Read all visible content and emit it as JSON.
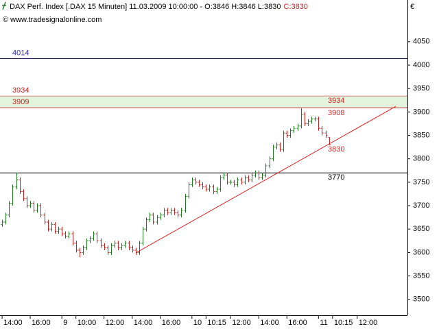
{
  "chart_data": {
    "type": "ohlc",
    "title": "DAX Perf. Index [.DAX  15 Minuten] 11.03.2009 10:00:00 - O:3846 H:3846 L:3830",
    "close_label": "C:3830",
    "source": "© www.tradesignalonline.com",
    "currency": "€",
    "up_color": "#1f7a1f",
    "down_color": "#cc1f1f",
    "ylim": [
      3466,
      4139
    ],
    "yticks": [
      3500,
      3550,
      3600,
      3650,
      3700,
      3750,
      3800,
      3850,
      3900,
      3950,
      4000,
      4050
    ],
    "xlim": [
      -0.6,
      115.3
    ],
    "xticks": [
      {
        "value": 0,
        "label": "14:00"
      },
      {
        "value": 8,
        "label": "16:00"
      },
      {
        "value": 17,
        "label": "9"
      },
      {
        "value": 21,
        "label": "10:00"
      },
      {
        "value": 29,
        "label": "12:00"
      },
      {
        "value": 37,
        "label": "14:00"
      },
      {
        "value": 45,
        "label": "16:00"
      },
      {
        "value": 54,
        "label": "10"
      },
      {
        "value": 58,
        "label": "10:15"
      },
      {
        "value": 65,
        "label": "12:00"
      },
      {
        "value": 73,
        "label": "14:00"
      },
      {
        "value": 81,
        "label": "16:00"
      },
      {
        "value": 90,
        "label": "11"
      },
      {
        "value": 94,
        "label": "10:15"
      },
      {
        "value": 101,
        "label": "12:00"
      }
    ],
    "x": [
      0,
      1,
      2,
      3,
      4,
      5,
      6,
      7,
      8,
      9,
      10,
      11,
      12,
      13,
      14,
      15,
      16,
      17,
      18,
      19,
      20,
      21,
      22,
      23,
      24,
      25,
      26,
      27,
      28,
      29,
      30,
      31,
      32,
      33,
      34,
      35,
      36,
      37,
      38,
      39,
      40,
      41,
      42,
      43,
      44,
      45,
      46,
      47,
      48,
      49,
      50,
      51,
      52,
      53,
      54,
      55,
      56,
      57,
      58,
      59,
      60,
      61,
      62,
      63,
      64,
      65,
      66,
      67,
      68,
      69,
      70,
      71,
      72,
      73,
      74,
      75,
      76,
      77,
      78,
      79,
      80,
      81,
      82,
      83,
      84,
      85,
      86,
      87,
      88,
      89,
      90,
      91,
      92,
      93
    ],
    "open": [
      3660,
      3665,
      3680,
      3705,
      3740,
      3755,
      3730,
      3715,
      3700,
      3705,
      3690,
      3700,
      3680,
      3665,
      3650,
      3660,
      3645,
      3650,
      3640,
      3635,
      3640,
      3620,
      3605,
      3600,
      3610,
      3625,
      3630,
      3640,
      3625,
      3615,
      3610,
      3600,
      3615,
      3620,
      3610,
      3615,
      3620,
      3610,
      3605,
      3600,
      3620,
      3650,
      3670,
      3680,
      3665,
      3675,
      3680,
      3690,
      3685,
      3690,
      3685,
      3680,
      3690,
      3720,
      3745,
      3755,
      3750,
      3745,
      3740,
      3735,
      3740,
      3730,
      3735,
      3760,
      3765,
      3750,
      3750,
      3745,
      3755,
      3750,
      3760,
      3755,
      3765,
      3770,
      3760,
      3765,
      3785,
      3800,
      3825,
      3830,
      3820,
      3855,
      3850,
      3860,
      3865,
      3870,
      3895,
      3875,
      3880,
      3885,
      3885,
      3865,
      3855,
      3846
    ],
    "high": [
      3670,
      3685,
      3710,
      3745,
      3770,
      3760,
      3735,
      3720,
      3710,
      3710,
      3705,
      3705,
      3685,
      3670,
      3665,
      3665,
      3655,
      3655,
      3645,
      3645,
      3645,
      3625,
      3610,
      3615,
      3630,
      3635,
      3645,
      3645,
      3630,
      3620,
      3615,
      3620,
      3625,
      3625,
      3620,
      3625,
      3625,
      3615,
      3610,
      3625,
      3655,
      3675,
      3685,
      3685,
      3680,
      3685,
      3695,
      3695,
      3695,
      3695,
      3690,
      3695,
      3725,
      3750,
      3760,
      3760,
      3755,
      3750,
      3745,
      3745,
      3745,
      3740,
      3765,
      3770,
      3770,
      3755,
      3755,
      3760,
      3760,
      3765,
      3765,
      3770,
      3775,
      3775,
      3770,
      3790,
      3805,
      3830,
      3835,
      3835,
      3860,
      3860,
      3865,
      3870,
      3875,
      3908,
      3900,
      3885,
      3890,
      3890,
      3890,
      3870,
      3860,
      3846
    ],
    "low": [
      3655,
      3660,
      3675,
      3700,
      3735,
      3725,
      3710,
      3695,
      3695,
      3685,
      3685,
      3675,
      3660,
      3645,
      3645,
      3640,
      3640,
      3635,
      3630,
      3630,
      3615,
      3600,
      3590,
      3595,
      3605,
      3620,
      3625,
      3620,
      3610,
      3605,
      3595,
      3595,
      3610,
      3605,
      3605,
      3610,
      3605,
      3600,
      3595,
      3595,
      3615,
      3645,
      3665,
      3660,
      3660,
      3670,
      3675,
      3680,
      3680,
      3680,
      3675,
      3675,
      3685,
      3715,
      3740,
      3745,
      3740,
      3735,
      3730,
      3730,
      3725,
      3725,
      3730,
      3755,
      3745,
      3745,
      3740,
      3740,
      3745,
      3745,
      3750,
      3750,
      3760,
      3755,
      3755,
      3760,
      3780,
      3795,
      3820,
      3815,
      3815,
      3845,
      3845,
      3855,
      3860,
      3865,
      3870,
      3870,
      3875,
      3880,
      3860,
      3850,
      3845,
      3830
    ],
    "close": [
      3665,
      3680,
      3705,
      3740,
      3755,
      3730,
      3715,
      3700,
      3705,
      3690,
      3700,
      3680,
      3665,
      3650,
      3660,
      3645,
      3650,
      3640,
      3635,
      3640,
      3620,
      3605,
      3600,
      3610,
      3625,
      3630,
      3640,
      3625,
      3615,
      3610,
      3600,
      3615,
      3620,
      3610,
      3615,
      3620,
      3610,
      3605,
      3600,
      3620,
      3650,
      3670,
      3680,
      3665,
      3675,
      3680,
      3690,
      3685,
      3690,
      3685,
      3680,
      3690,
      3720,
      3745,
      3755,
      3750,
      3745,
      3740,
      3735,
      3740,
      3730,
      3735,
      3760,
      3765,
      3750,
      3750,
      3745,
      3755,
      3750,
      3760,
      3755,
      3765,
      3770,
      3760,
      3765,
      3785,
      3800,
      3825,
      3830,
      3820,
      3855,
      3850,
      3860,
      3865,
      3870,
      3895,
      3875,
      3880,
      3885,
      3885,
      3865,
      3855,
      3850,
      3830
    ],
    "hlines": [
      {
        "value": 4014,
        "color": "#1a1a5e",
        "label_color": "#2a2acc",
        "left_label": true
      },
      {
        "value": 3770,
        "color": "#000000",
        "left_label": false
      }
    ],
    "zone": {
      "from": 3909,
      "to": 3934,
      "fill": "#e2f4dc",
      "line_color": "#cc3333",
      "label_color": "#cc2222"
    },
    "trendline": {
      "x": [
        38,
        112
      ],
      "y": [
        3599,
        3912
      ],
      "color": "#e02020"
    },
    "right_labels": [
      {
        "value": 3934,
        "color": "#cc2222"
      },
      {
        "value": 3908,
        "color": "#cc2222"
      },
      {
        "value": 3830,
        "color": "#cc2222"
      },
      {
        "value": 3770,
        "color": "#000000"
      }
    ]
  }
}
